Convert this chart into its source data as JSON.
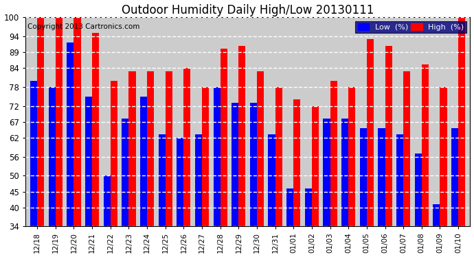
{
  "title": "Outdoor Humidity Daily High/Low 20130111",
  "copyright": "Copyright 2013 Cartronics.com",
  "categories": [
    "12/18",
    "12/19",
    "12/20",
    "12/21",
    "12/22",
    "12/23",
    "12/24",
    "12/25",
    "12/26",
    "12/27",
    "12/28",
    "12/29",
    "12/30",
    "12/31",
    "01/01",
    "01/02",
    "01/03",
    "01/04",
    "01/05",
    "01/06",
    "01/07",
    "01/08",
    "01/09",
    "01/10"
  ],
  "low_values": [
    80,
    78,
    92,
    75,
    50,
    68,
    75,
    63,
    62,
    63,
    78,
    73,
    73,
    63,
    46,
    46,
    68,
    68,
    65,
    65,
    63,
    57,
    41,
    65
  ],
  "high_values": [
    100,
    100,
    100,
    95,
    80,
    83,
    83,
    83,
    84,
    78,
    90,
    91,
    83,
    78,
    74,
    72,
    80,
    78,
    93,
    91,
    83,
    85,
    78,
    100
  ],
  "low_color": "#0000FF",
  "high_color": "#FF0000",
  "bg_color": "#FFFFFF",
  "plot_bg_color": "#CCCCCC",
  "grid_color": "#FFFFFF",
  "ylim_min": 34,
  "ylim_max": 100,
  "yticks": [
    34,
    40,
    45,
    50,
    56,
    62,
    67,
    72,
    78,
    84,
    89,
    94,
    100
  ],
  "title_fontsize": 12,
  "copyright_fontsize": 7.5,
  "legend_low": "Low  (%)",
  "legend_high": "High  (%)"
}
